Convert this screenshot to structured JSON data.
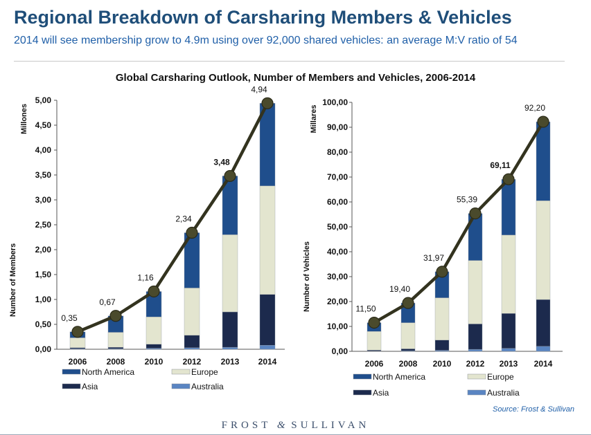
{
  "header": {
    "title": "Regional Breakdown of Carsharing Members & Vehicles",
    "subtitle": "2014 will see membership grow to 4.9m using over 92,000 shared vehicles: an average M:V ratio of 54"
  },
  "chart_heading": "Global Carsharing Outlook, Number of Members and Vehicles, 2006-2014",
  "source": "Source: Frost & Sullivan",
  "brand": {
    "left": "FROST",
    "amp": "&",
    "right": "SULLIVAN"
  },
  "colors": {
    "north_america": "#1f4e8c",
    "europe": "#e3e5cf",
    "asia": "#1c2a4d",
    "australia": "#5a85c2",
    "line": "#33331f",
    "marker": "#4a4a2c"
  },
  "chart_data": [
    {
      "type": "bar",
      "stacked": true,
      "title": "Global Carsharing Outlook, Number of Members and Vehicles, 2006-2014",
      "categories": [
        "2006",
        "2008",
        "2010",
        "2012",
        "2013",
        "2014"
      ],
      "unit_label": "Millones",
      "ylabel": "Number of Members",
      "ylim": [
        0,
        5
      ],
      "yticks": [
        "0,00",
        "0,50",
        "1,00",
        "1,50",
        "2,00",
        "2,50",
        "3,00",
        "3,50",
        "4,00",
        "4,50",
        "5,00"
      ],
      "series": [
        {
          "name": "Australia",
          "values": [
            0.01,
            0.01,
            0.02,
            0.03,
            0.04,
            0.08
          ]
        },
        {
          "name": "Asia",
          "values": [
            0.02,
            0.03,
            0.08,
            0.25,
            0.71,
            1.02
          ]
        },
        {
          "name": "Europe",
          "values": [
            0.2,
            0.3,
            0.55,
            0.95,
            1.55,
            2.18
          ]
        },
        {
          "name": "North America",
          "values": [
            0.12,
            0.33,
            0.51,
            1.11,
            1.18,
            1.66
          ]
        }
      ],
      "totals": [
        0.35,
        0.67,
        1.16,
        2.34,
        3.48,
        4.94
      ],
      "total_labels": [
        "0,35",
        "0,67",
        "1,16",
        "2,34",
        "3,48",
        "4,94"
      ],
      "bold_labels": [
        false,
        false,
        false,
        false,
        true,
        false
      ],
      "legend": [
        "North America",
        "Europe",
        "Asia",
        "Australia"
      ]
    },
    {
      "type": "bar",
      "stacked": true,
      "title": "Global Carsharing Outlook, Number of Members and Vehicles, 2006-2014",
      "categories": [
        "2006",
        "2008",
        "2010",
        "2012",
        "2013",
        "2014"
      ],
      "unit_label": "Millares",
      "ylabel": "Number of Vehicles",
      "ylim": [
        0,
        100
      ],
      "yticks": [
        "0,00",
        "10,00",
        "20,00",
        "30,00",
        "40,00",
        "50,00",
        "60,00",
        "70,00",
        "80,00",
        "90,00",
        "100,00"
      ],
      "series": [
        {
          "name": "Australia",
          "values": [
            0.1,
            0.2,
            0.4,
            0.8,
            1.2,
            2.0
          ]
        },
        {
          "name": "Asia",
          "values": [
            0.4,
            0.8,
            4.1,
            10.2,
            14.0,
            18.8
          ]
        },
        {
          "name": "Europe",
          "values": [
            7.5,
            10.5,
            17.0,
            25.5,
            31.5,
            39.7
          ]
        },
        {
          "name": "North America",
          "values": [
            3.5,
            7.9,
            10.47,
            18.89,
            22.41,
            31.7
          ]
        }
      ],
      "totals": [
        11.5,
        19.4,
        31.97,
        55.39,
        69.11,
        92.2
      ],
      "total_labels": [
        "11,50",
        "19,40",
        "31,97",
        "55,39",
        "69,11",
        "92,20"
      ],
      "bold_labels": [
        false,
        false,
        false,
        false,
        true,
        false
      ],
      "legend": [
        "North America",
        "Europe",
        "Asia",
        "Australia"
      ]
    }
  ]
}
